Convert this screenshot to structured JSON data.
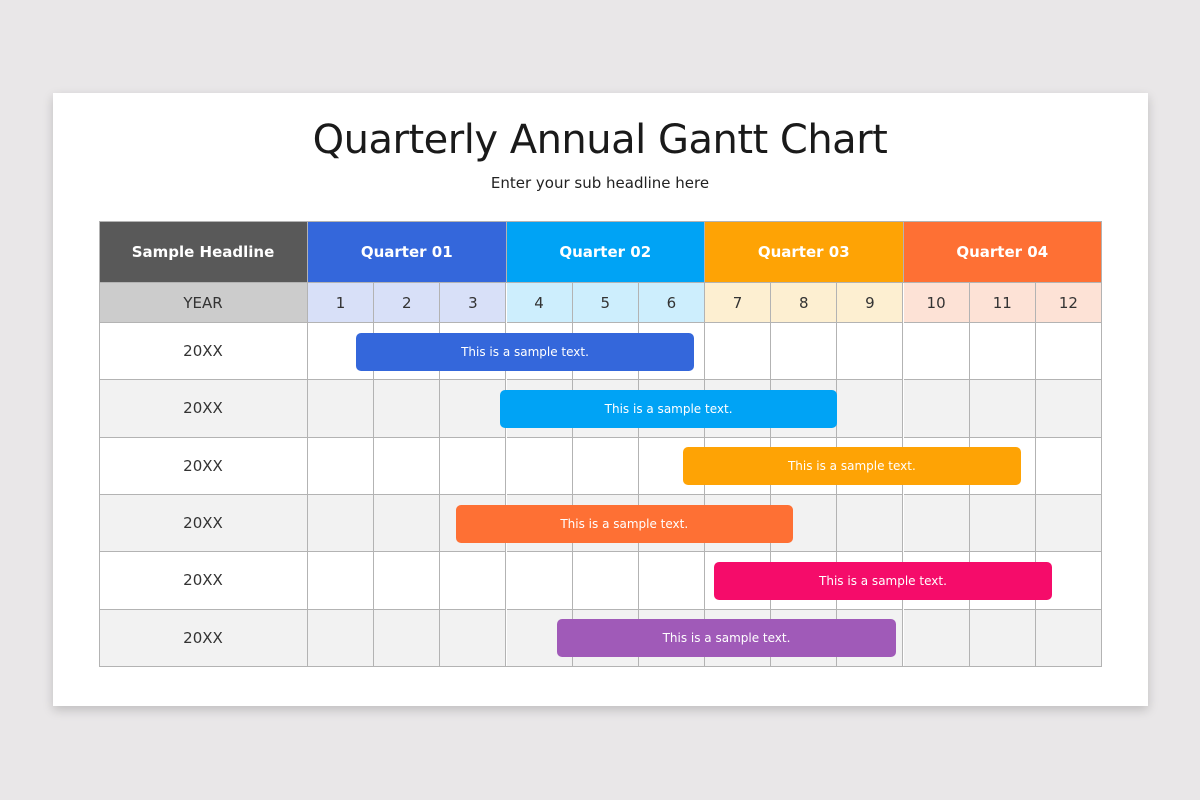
{
  "title": "Quarterly Annual Gantt Chart",
  "subtitle": "Enter your sub headline here",
  "chart_data": {
    "type": "gantt",
    "title": "Quarterly Annual Gantt Chart",
    "subtitle": "Enter your sub headline here",
    "corner_label": "Sample Headline",
    "year_label": "YEAR",
    "quarters": [
      {
        "label": "Quarter 01",
        "color": "#3467db",
        "tint": "#d8e0f8",
        "months": [
          "1",
          "2",
          "3"
        ]
      },
      {
        "label": "Quarter 02",
        "color": "#00a3f5",
        "tint": "#cdeefd",
        "months": [
          "4",
          "5",
          "6"
        ]
      },
      {
        "label": "Quarter 03",
        "color": "#fea305",
        "tint": "#fdefd1",
        "months": [
          "7",
          "8",
          "9"
        ]
      },
      {
        "label": "Quarter 04",
        "color": "#fe7034",
        "tint": "#fde2d6",
        "months": [
          "10",
          "11",
          "12"
        ]
      }
    ],
    "x_range_months": [
      0,
      12
    ],
    "tasks": [
      {
        "row": "20XX",
        "label": "This is a sample text.",
        "start": 0.73,
        "end": 5.83,
        "color": "#3467db"
      },
      {
        "row": "20XX",
        "label": "This is a sample text.",
        "start": 2.9,
        "end": 8.0,
        "color": "#00a3f5"
      },
      {
        "row": "20XX",
        "label": "This is a sample text.",
        "start": 5.67,
        "end": 10.77,
        "color": "#fea305"
      },
      {
        "row": "20XX",
        "label": "This is a sample text.",
        "start": 2.23,
        "end": 7.33,
        "color": "#fe7034"
      },
      {
        "row": "20XX",
        "label": "This is a sample text.",
        "start": 6.14,
        "end": 11.24,
        "color": "#f50c6a"
      },
      {
        "row": "20XX",
        "label": "This is a sample text.",
        "start": 3.77,
        "end": 8.88,
        "color": "#a05ab8"
      }
    ],
    "colors": {
      "corner": "#595959",
      "year_cell": "#cccccc",
      "row_alt": "#f2f2f2",
      "grid": "#b3b3b3"
    }
  }
}
